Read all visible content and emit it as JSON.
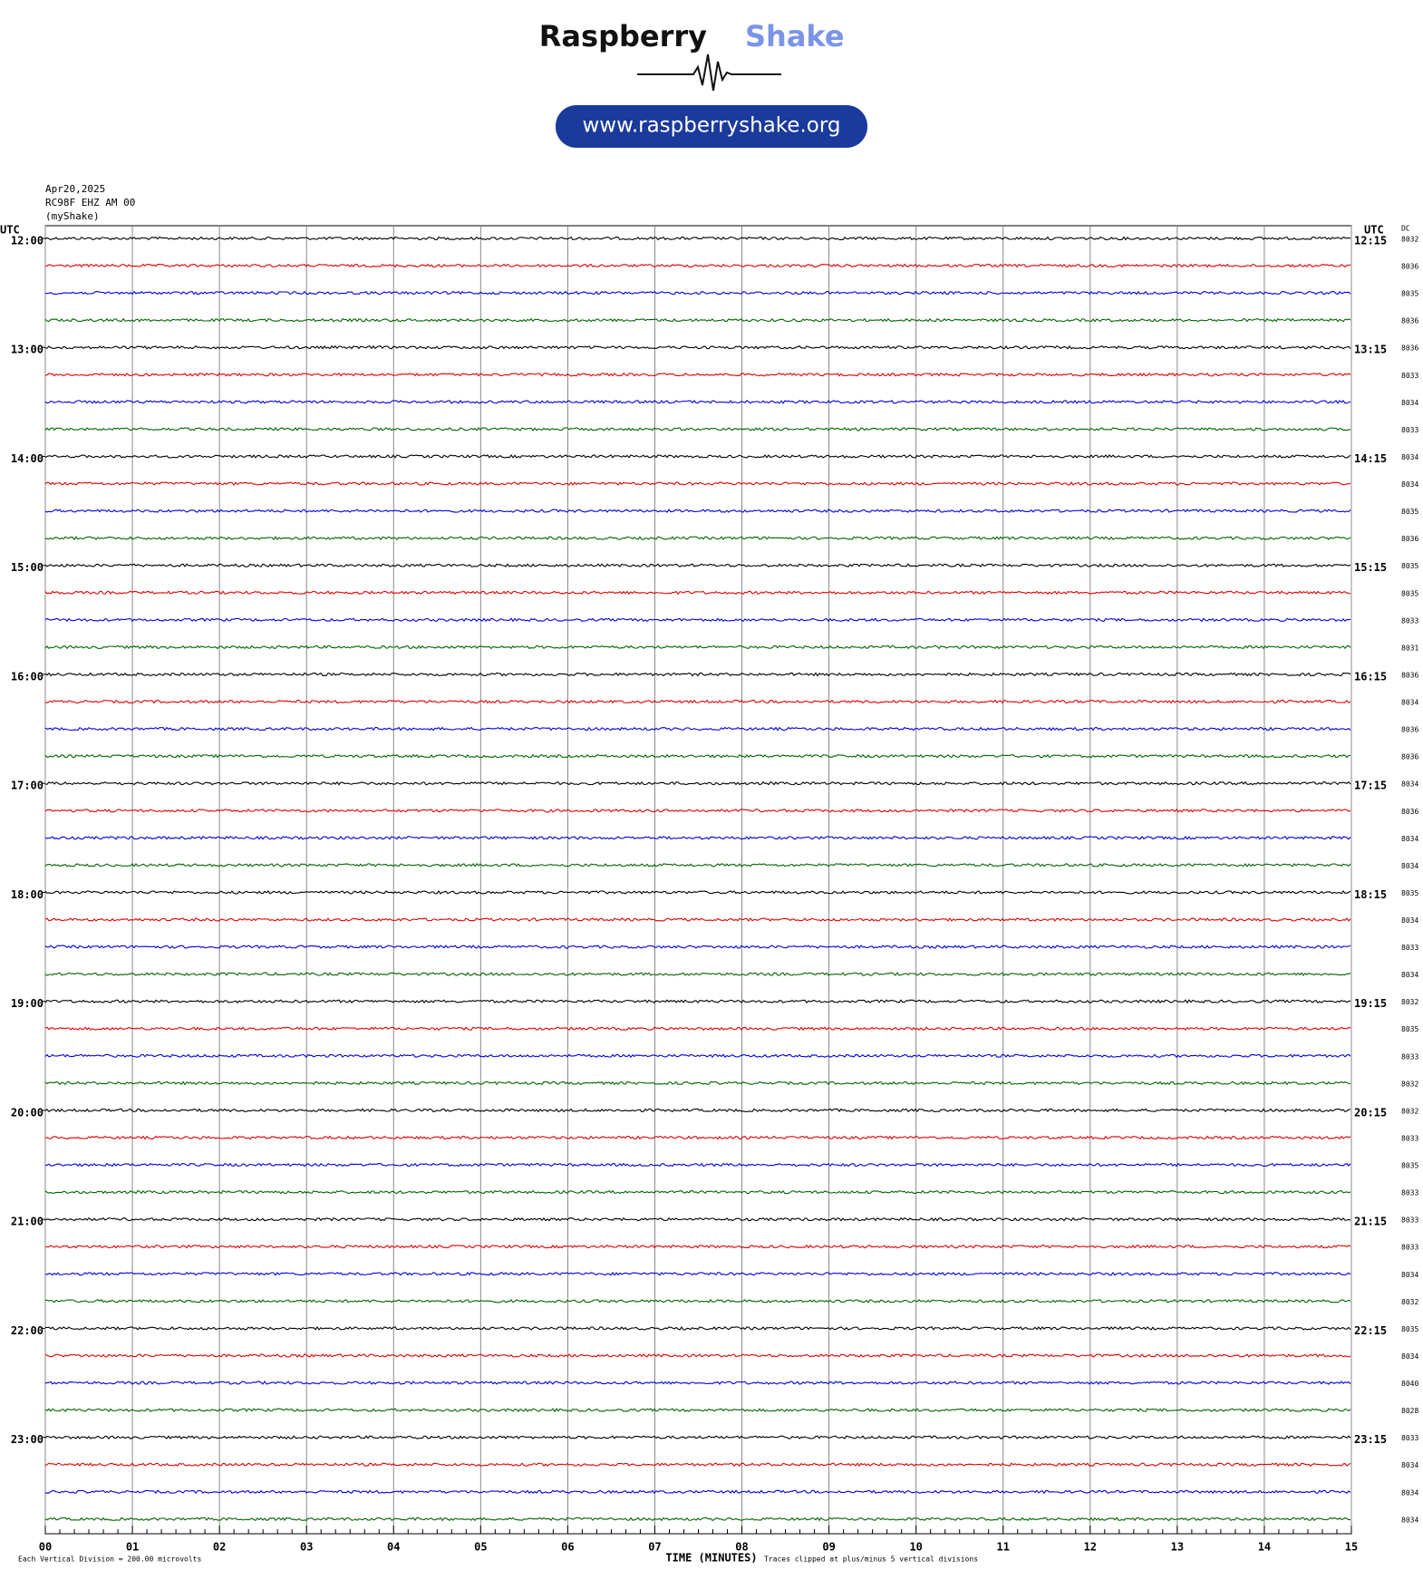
{
  "header": {
    "brand_1": "Raspberry",
    "brand_2": "Shake",
    "url": "www.raspberryshake.org"
  },
  "info": {
    "date": "Apr20,2025",
    "station": "RC98F EHZ AM 00",
    "source": "(myShake)"
  },
  "axis": {
    "utc_left": "UTC",
    "utc_right": "UTC",
    "dc_label": "DC",
    "x_label": "TIME (MINUTES)",
    "footer_left": "Each Vertical Division =  200.00 microvolts",
    "footer_right": "Traces clipped at plus/minus 5 vertical divisions",
    "x_ticks": [
      "00",
      "01",
      "02",
      "03",
      "04",
      "05",
      "06",
      "07",
      "08",
      "09",
      "10",
      "11",
      "12",
      "13",
      "14",
      "15"
    ]
  },
  "hours": [
    {
      "left": "12:00",
      "right": "12:15"
    },
    {
      "left": "13:00",
      "right": "13:15"
    },
    {
      "left": "14:00",
      "right": "14:15"
    },
    {
      "left": "15:00",
      "right": "15:15"
    },
    {
      "left": "16:00",
      "right": "16:15"
    },
    {
      "left": "17:00",
      "right": "17:15"
    },
    {
      "left": "18:00",
      "right": "18:15"
    },
    {
      "left": "19:00",
      "right": "19:15"
    },
    {
      "left": "20:00",
      "right": "20:15"
    },
    {
      "left": "21:00",
      "right": "21:15"
    },
    {
      "left": "22:00",
      "right": "22:15"
    },
    {
      "left": "23:00",
      "right": "23:15"
    }
  ],
  "dc": [
    8032,
    8036,
    8035,
    8036,
    8036,
    8033,
    8034,
    8033,
    8034,
    8034,
    8035,
    8036,
    8035,
    8035,
    8033,
    8031,
    8036,
    8034,
    8036,
    8036,
    8034,
    8036,
    8034,
    8034,
    8035,
    8034,
    8033,
    8034,
    8032,
    8035,
    8033,
    8032,
    8032,
    8033,
    8035,
    8033,
    8033,
    8033,
    8034,
    8032,
    8035,
    8034,
    8040,
    8028,
    8033,
    8034,
    8034,
    8034
  ],
  "trace_colors": [
    "#000000",
    "#e00000",
    "#0000e0",
    "#006400"
  ]
}
